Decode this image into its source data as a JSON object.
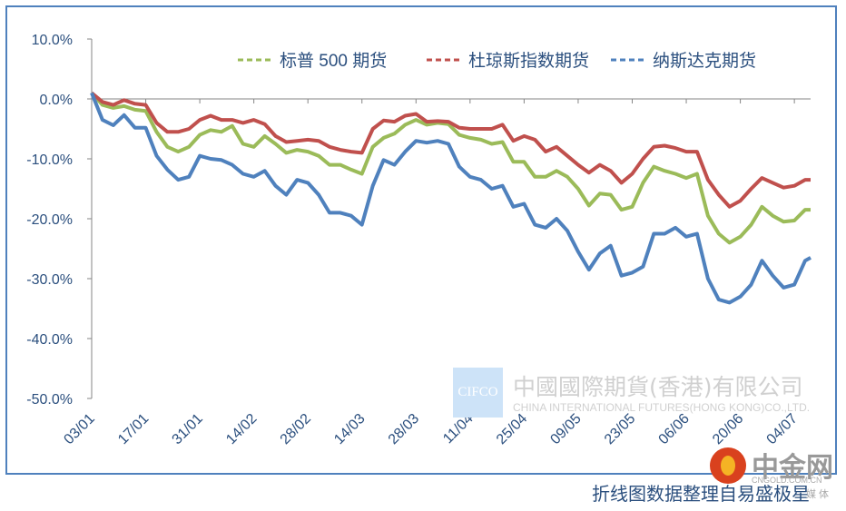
{
  "chart_data": {
    "type": "line",
    "title": "",
    "xlabel": "",
    "ylabel": "",
    "ylim": [
      -50,
      10
    ],
    "yticks": [
      10,
      0,
      -10,
      -20,
      -30,
      -40,
      -50
    ],
    "ytick_labels": [
      "10.0%",
      "0.0%",
      "-10.0%",
      "-20.0%",
      "-30.0%",
      "-40.0%",
      "-50.0%"
    ],
    "x_unit": "trading day index",
    "xlim": [
      0,
      133
    ],
    "xticks": [
      0,
      10,
      20,
      30,
      40,
      50,
      60,
      70,
      80,
      90,
      100,
      110,
      120,
      130
    ],
    "xtick_labels": [
      "03/01",
      "17/01",
      "31/01",
      "14/02",
      "28/02",
      "14/03",
      "28/03",
      "11/04",
      "25/04",
      "09/05",
      "23/05",
      "06/06",
      "20/06",
      "04/07"
    ],
    "legend_position": "top-right",
    "grid": false,
    "x": [
      0,
      2,
      4,
      6,
      8,
      10,
      12,
      14,
      16,
      18,
      20,
      22,
      24,
      26,
      28,
      30,
      32,
      34,
      36,
      38,
      40,
      42,
      44,
      46,
      48,
      50,
      52,
      54,
      56,
      58,
      60,
      62,
      64,
      66,
      68,
      70,
      72,
      74,
      76,
      78,
      80,
      82,
      84,
      86,
      88,
      90,
      92,
      94,
      96,
      98,
      100,
      102,
      104,
      106,
      108,
      110,
      112,
      114,
      116,
      118,
      120,
      122,
      124,
      126,
      128,
      130,
      132,
      133
    ],
    "series": [
      {
        "name": "标普 500 期货",
        "color": "#9BBB59",
        "values": [
          1,
          -1,
          -1.5,
          -1.2,
          -1.8,
          -2,
          -5.5,
          -8,
          -8.8,
          -8,
          -6,
          -5.2,
          -5.5,
          -4.5,
          -7.5,
          -8,
          -6.2,
          -7.5,
          -9,
          -8.5,
          -8.8,
          -9.5,
          -11,
          -11,
          -11.8,
          -12.5,
          -8,
          -6.5,
          -5.8,
          -4.3,
          -3.5,
          -4.3,
          -4,
          -4.2,
          -6,
          -6.5,
          -6.8,
          -7.5,
          -7.2,
          -10.5,
          -10.5,
          -13,
          -13,
          -12,
          -13,
          -15,
          -17.8,
          -15.8,
          -16,
          -18.5,
          -18,
          -14,
          -11.3,
          -12,
          -12.5,
          -13.2,
          -12.5,
          -19.5,
          -22.5,
          -24,
          -23,
          -21,
          -18,
          -19.5,
          -20.5,
          -20.3,
          -18.5,
          -18.5
        ]
      },
      {
        "name": "杜琼斯指数期货",
        "color": "#C0504D",
        "values": [
          1,
          -0.5,
          -1,
          -0.2,
          -0.8,
          -1,
          -4,
          -5.5,
          -5.5,
          -5,
          -3.5,
          -2.8,
          -3.5,
          -3.5,
          -4,
          -3.5,
          -4.2,
          -6.2,
          -7.2,
          -7,
          -6.8,
          -7,
          -8,
          -8.5,
          -8.8,
          -9,
          -5,
          -3.6,
          -3.8,
          -2.8,
          -2.5,
          -3.8,
          -3.7,
          -3.8,
          -4.8,
          -5,
          -5,
          -5,
          -4.3,
          -7,
          -6.2,
          -6.8,
          -8.8,
          -8,
          -9.5,
          -11,
          -12.3,
          -11,
          -12,
          -14,
          -12.5,
          -10,
          -8,
          -7.8,
          -8.2,
          -8.8,
          -8.8,
          -13.5,
          -16,
          -18,
          -17,
          -15,
          -13.2,
          -14,
          -14.8,
          -14.5,
          -13.5,
          -13.5
        ]
      },
      {
        "name": "纳斯达克期货",
        "color": "#4F81BD",
        "values": [
          1,
          -3.5,
          -4.4,
          -2.7,
          -4.8,
          -4.8,
          -9.5,
          -11.8,
          -13.5,
          -13,
          -9.5,
          -10,
          -10.2,
          -11,
          -12.5,
          -13,
          -12,
          -14.5,
          -16,
          -13.5,
          -14,
          -16,
          -19,
          -19,
          -19.5,
          -21,
          -14.5,
          -10.2,
          -11,
          -8.8,
          -7,
          -7.3,
          -7,
          -7.5,
          -11.3,
          -13,
          -13.5,
          -15,
          -14.5,
          -18,
          -17.5,
          -21,
          -21.5,
          -20,
          -22,
          -25.5,
          -28.5,
          -25.8,
          -24.5,
          -29.5,
          -29,
          -28,
          -22.5,
          -22.5,
          -21.5,
          -23,
          -22.5,
          -30,
          -33.5,
          -34,
          -33,
          -31,
          -27,
          -29.5,
          -31.5,
          -31,
          -27,
          -26.5
        ]
      }
    ]
  },
  "watermark": {
    "logo_text": "CIFCO",
    "company_cn": "中國國際期貨(香港)有限公司",
    "company_en": "CHINA INTERNATIONAL FUTURES(HONG KONG)CO.,LTD."
  },
  "site_logo": {
    "name": "中金网",
    "url": "CNGOLD.COM.CN",
    "media": "媒 体"
  },
  "footer_note": "折线图数据整理自易盛极星"
}
